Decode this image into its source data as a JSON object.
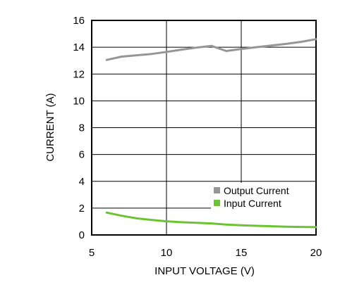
{
  "chart_data": {
    "type": "line",
    "xlabel": "INPUT VOLTAGE (V)",
    "ylabel": "CURRENT (A)",
    "xlim": [
      5,
      20
    ],
    "ylim": [
      0,
      16
    ],
    "x_ticks": [
      "5",
      "10",
      "15",
      "20"
    ],
    "y_ticks": [
      "0",
      "2",
      "4",
      "6",
      "8",
      "10",
      "12",
      "14",
      "16"
    ],
    "grid": true,
    "legend_position": "bottom-right",
    "series": [
      {
        "name": "Output Current",
        "color": "#969696",
        "x": [
          6,
          7,
          8,
          9,
          10,
          11,
          12,
          13,
          14,
          15,
          16,
          17,
          18,
          19,
          20
        ],
        "y": [
          13.05,
          13.3,
          13.4,
          13.5,
          13.65,
          13.82,
          13.97,
          14.1,
          13.72,
          13.87,
          14.0,
          14.12,
          14.25,
          14.4,
          14.6
        ]
      },
      {
        "name": "Input Current",
        "color": "#6cc332",
        "x": [
          6,
          7,
          8,
          9,
          10,
          11,
          12,
          13,
          14,
          15,
          16,
          17,
          18,
          19,
          20
        ],
        "y": [
          1.67,
          1.43,
          1.24,
          1.12,
          1.02,
          0.95,
          0.9,
          0.86,
          0.77,
          0.72,
          0.68,
          0.65,
          0.62,
          0.6,
          0.58
        ]
      }
    ]
  }
}
